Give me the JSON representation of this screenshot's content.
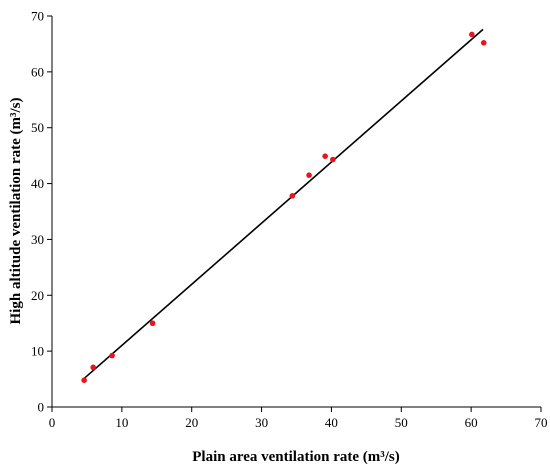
{
  "chart_data": {
    "type": "scatter",
    "title": "",
    "xlabel": "Plain area ventilation rate (m³/s)",
    "ylabel": "High altitude ventilation rate (m³/s)",
    "xlim": [
      0,
      70
    ],
    "ylim": [
      0,
      70
    ],
    "x_ticks": [
      0,
      10,
      20,
      30,
      40,
      50,
      60,
      70
    ],
    "y_ticks": [
      0,
      10,
      20,
      30,
      40,
      50,
      60,
      70
    ],
    "grid": false,
    "legend": "none",
    "series": [
      {
        "kind": "points",
        "color": "#e8141e",
        "points": [
          {
            "x": 4.6,
            "y": 4.8
          },
          {
            "x": 5.9,
            "y": 7.1
          },
          {
            "x": 8.6,
            "y": 9.2
          },
          {
            "x": 14.4,
            "y": 15.0
          },
          {
            "x": 34.4,
            "y": 37.8
          },
          {
            "x": 36.8,
            "y": 41.5
          },
          {
            "x": 39.1,
            "y": 44.9
          },
          {
            "x": 40.2,
            "y": 44.3
          },
          {
            "x": 60.1,
            "y": 66.7
          },
          {
            "x": 61.8,
            "y": 65.2
          }
        ]
      },
      {
        "kind": "fit-line",
        "color": "#000000",
        "from": {
          "x": 4.5,
          "y": 5.0
        },
        "to": {
          "x": 61.7,
          "y": 67.6
        }
      }
    ]
  }
}
